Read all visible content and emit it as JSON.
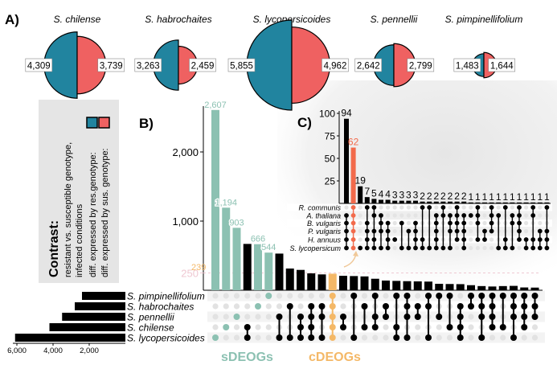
{
  "panel_labels": {
    "a": "A)",
    "b": "B)",
    "c": "C)"
  },
  "colors": {
    "resistant": "#21849f",
    "susceptible": "#ef6161",
    "sdeog": "#8cc1b2",
    "cdeog": "#f4b867",
    "highlight_c": "#f26a4b",
    "bar": "#000000"
  },
  "legend": {
    "title": "Contrast:",
    "line1": "resistant vs. susceptible genotype,",
    "line2": "infected conditions",
    "res_label": "diff. expressed by res.genotype:",
    "sus_label": "diff. expressed by sus. genotype:"
  },
  "footer": {
    "sdeogs": "sDEOGs",
    "cdeogs": "cDEOGs"
  },
  "chart_data": [
    {
      "type": "half-circle",
      "panel": "A",
      "species": [
        {
          "name": "S. chilense",
          "resistant": "4,309",
          "susceptible": "3,739",
          "res_value": 4309,
          "sus_value": 3739
        },
        {
          "name": "S. habrochaites",
          "resistant": "3,263",
          "susceptible": "2,459",
          "res_value": 3263,
          "sus_value": 2459
        },
        {
          "name": "S. lycopersicoides",
          "resistant": "5,855",
          "susceptible": "4,962",
          "res_value": 5855,
          "sus_value": 4962
        },
        {
          "name": "S. pennellii",
          "resistant": "2,642",
          "susceptible": "2,799",
          "res_value": 2642,
          "sus_value": 2799
        },
        {
          "name": "S. pimpinellifolium",
          "resistant": "1,483",
          "susceptible": "1,644",
          "res_value": 1483,
          "sus_value": 1644
        }
      ]
    },
    {
      "type": "upset",
      "panel": "B",
      "sets": [
        "S. pimpinellifolium",
        "S. habrochaites",
        "S. pennellii",
        "S. chilense",
        "S. lycopersicoides"
      ],
      "set_sizes": [
        2400,
        2800,
        3500,
        4200,
        6100
      ],
      "set_size_ticks": [
        "6,000",
        "4,000",
        "2,000"
      ],
      "set_size_tick_values": [
        6000,
        4000,
        2000
      ],
      "y_ticks": [
        "2,000",
        "1,000",
        "250"
      ],
      "y_tick_values": [
        2000,
        1000,
        250
      ],
      "ylim": [
        0,
        2700
      ],
      "reference_line": 250,
      "values": [
        2607,
        1194,
        903,
        670,
        666,
        544,
        530,
        314,
        294,
        244,
        229,
        239,
        209,
        205,
        200,
        166,
        140,
        135,
        131,
        128,
        125,
        93,
        90,
        88,
        73,
        60,
        54,
        60,
        63,
        40,
        38
      ],
      "bar_labels": {
        "0": "2,607",
        "1": "1,194",
        "2": "903",
        "4": "666",
        "5": "544",
        "11": "239"
      },
      "highlight": {
        "sdeog": [
          0,
          1,
          2,
          4,
          5
        ],
        "cdeog": [
          11
        ]
      },
      "membership": [
        [
          4
        ],
        [
          3
        ],
        [
          2
        ],
        [
          3,
          4
        ],
        [
          1
        ],
        [
          0
        ],
        [
          2,
          4
        ],
        [
          1,
          4
        ],
        [
          2,
          3,
          4
        ],
        [
          1,
          2,
          3,
          4
        ],
        [
          1,
          2,
          4
        ],
        [
          0,
          1,
          2,
          3,
          4
        ],
        [
          2,
          3
        ],
        [
          0,
          4
        ],
        [
          1,
          3
        ],
        [
          0,
          2,
          3
        ],
        [
          1,
          2
        ],
        [
          0,
          3,
          4
        ],
        [
          0,
          1,
          2,
          4
        ],
        [
          1,
          2
        ],
        [
          0,
          1,
          4
        ],
        [
          0,
          2
        ],
        [
          0,
          3
        ],
        [
          1,
          2,
          3,
          4
        ],
        [
          0,
          1
        ],
        [
          0,
          1,
          2,
          4
        ],
        [
          0,
          1,
          2,
          3
        ],
        [
          0,
          3
        ],
        [
          0,
          1,
          2,
          4
        ],
        [
          0,
          1,
          2,
          3
        ],
        [
          0,
          1,
          2
        ]
      ]
    },
    {
      "type": "upset",
      "panel": "C",
      "sets": [
        "R. communis",
        "A. thaliana",
        "B. vulgaris",
        "P. vulgaris",
        "H. annuus",
        "S. lycopersicum"
      ],
      "y_ticks": [
        "100",
        "75",
        "50",
        "25"
      ],
      "y_tick_values": [
        100,
        75,
        50,
        25
      ],
      "ylim": [
        0,
        100
      ],
      "values": [
        94,
        62,
        19,
        7,
        5,
        4,
        4,
        3,
        3,
        3,
        3,
        2,
        2,
        2,
        2,
        2,
        2,
        2,
        1,
        1,
        1,
        1,
        1,
        1,
        1,
        1,
        1,
        1,
        1,
        1
      ],
      "highlight": [
        1
      ],
      "arrow_label": "239",
      "membership": [
        [
          1,
          2,
          3,
          4,
          5
        ],
        [
          0,
          1,
          2,
          3,
          4,
          5
        ],
        [
          5
        ],
        [
          0,
          2,
          3,
          4,
          5
        ],
        [
          0,
          1,
          3,
          4,
          5
        ],
        [
          1,
          2,
          3,
          5
        ],
        [
          2,
          3,
          4,
          5
        ],
        [
          4
        ],
        [
          2,
          5
        ],
        [
          3,
          5
        ],
        [
          2,
          3,
          4,
          5
        ],
        [
          0,
          4,
          5
        ],
        [
          0,
          5
        ],
        [
          1,
          2,
          3,
          4,
          5
        ],
        [
          0,
          1,
          5
        ],
        [
          1,
          2,
          3,
          5
        ],
        [
          0,
          1,
          2,
          3,
          4
        ],
        [
          1,
          2,
          3,
          4,
          5
        ],
        [
          1
        ],
        [
          0,
          1,
          2,
          4
        ],
        [
          3,
          4
        ],
        [
          0,
          1,
          2,
          3
        ],
        [
          1,
          5
        ],
        [
          0,
          4,
          5
        ],
        [
          1,
          2,
          5
        ],
        [
          0,
          1,
          2,
          3,
          4
        ],
        [
          4,
          5
        ],
        [
          0,
          1,
          4,
          5
        ],
        [
          3,
          4,
          5
        ],
        [
          0,
          3,
          4,
          5
        ]
      ]
    }
  ]
}
